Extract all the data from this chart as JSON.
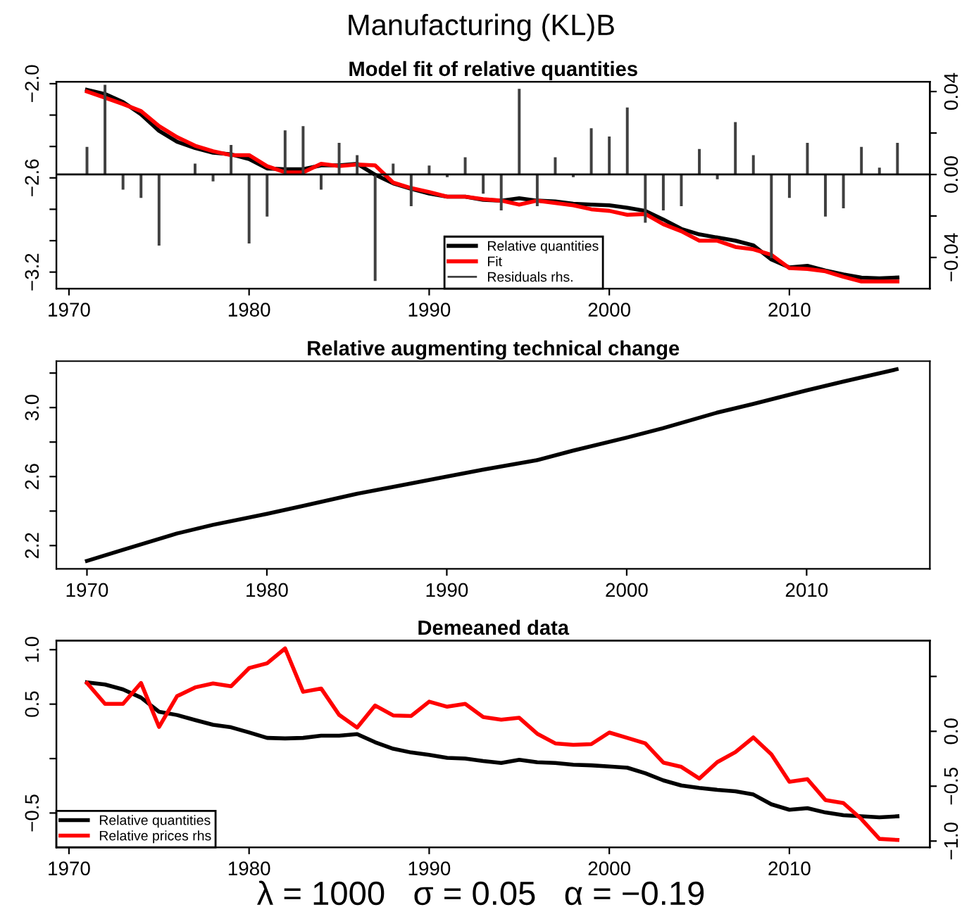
{
  "chart_data": [
    {
      "type": "line",
      "title": "Manufacturing (KL)B",
      "subtitle": "Model fit of relative quantities",
      "x": [
        1971,
        1972,
        1973,
        1974,
        1975,
        1976,
        1977,
        1978,
        1979,
        1980,
        1981,
        1982,
        1983,
        1984,
        1985,
        1986,
        1987,
        1988,
        1989,
        1990,
        1991,
        1992,
        1993,
        1994,
        1995,
        1996,
        1997,
        1998,
        1999,
        2000,
        2001,
        2002,
        2003,
        2004,
        2005,
        2006,
        2007,
        2008,
        2009,
        2010,
        2011,
        2012,
        2013,
        2014,
        2015,
        2016
      ],
      "series": [
        {
          "name": "Relative quantities",
          "color": "#000000",
          "values": [
            -2.039,
            -2.066,
            -2.117,
            -2.195,
            -2.3,
            -2.37,
            -2.41,
            -2.44,
            -2.45,
            -2.48,
            -2.54,
            -2.545,
            -2.545,
            -2.52,
            -2.52,
            -2.51,
            -2.58,
            -2.635,
            -2.67,
            -2.7,
            -2.72,
            -2.72,
            -2.74,
            -2.745,
            -2.73,
            -2.745,
            -2.75,
            -2.765,
            -2.77,
            -2.775,
            -2.79,
            -2.81,
            -2.865,
            -2.925,
            -2.96,
            -2.98,
            -3.0,
            -3.03,
            -3.12,
            -3.17,
            -3.16,
            -3.19,
            -3.215,
            -3.235,
            -3.24,
            -3.235
          ]
        },
        {
          "name": "Fit",
          "color": "#ff0000",
          "values": [
            -2.05,
            -2.09,
            -2.13,
            -2.175,
            -2.27,
            -2.34,
            -2.395,
            -2.43,
            -2.455,
            -2.455,
            -2.525,
            -2.565,
            -2.565,
            -2.51,
            -2.525,
            -2.515,
            -2.52,
            -2.63,
            -2.665,
            -2.69,
            -2.72,
            -2.72,
            -2.735,
            -2.745,
            -2.77,
            -2.745,
            -2.76,
            -2.775,
            -2.8,
            -2.81,
            -2.835,
            -2.83,
            -2.895,
            -2.94,
            -3.0,
            -3.0,
            -3.04,
            -3.055,
            -3.09,
            -3.175,
            -3.18,
            -3.195,
            -3.23,
            -3.26,
            -3.26,
            -3.26
          ]
        },
        {
          "name": "Residuals rhs.",
          "type": "bar",
          "axis": "y2",
          "color": "#404040",
          "values": [
            0.013,
            0.043,
            -0.007,
            -0.011,
            -0.034,
            0.0,
            0.005,
            -0.003,
            0.014,
            -0.033,
            -0.02,
            0.021,
            0.023,
            -0.007,
            0.015,
            0.009,
            -0.051,
            0.005,
            -0.015,
            0.004,
            -0.001,
            0.008,
            -0.009,
            -0.017,
            0.041,
            -0.015,
            0.008,
            -0.001,
            0.022,
            0.018,
            0.032,
            -0.023,
            -0.017,
            -0.015,
            0.012,
            -0.002,
            0.025,
            0.009,
            -0.04,
            -0.011,
            0.015,
            -0.02,
            -0.016,
            0.013,
            0.003,
            0.015
          ]
        }
      ],
      "xlim": [
        1969.3,
        2017.8
      ],
      "xticks": [
        1970,
        1980,
        1990,
        2000,
        2010
      ],
      "ylim": [
        -3.305,
        -1.988
      ],
      "yticks": [
        {
          "value": -2.0,
          "label": "−2.0"
        },
        {
          "value": -2.2,
          "label": null
        },
        {
          "value": -2.4,
          "label": null
        },
        {
          "value": -2.6,
          "label": "−2.6"
        },
        {
          "value": -2.8,
          "label": null
        },
        {
          "value": -3.0,
          "label": null
        },
        {
          "value": -3.2,
          "label": "−3.2"
        }
      ],
      "y2lim": [
        -0.055,
        0.0447
      ],
      "y2ticks": [
        {
          "value": -0.04,
          "label": "−0.04"
        },
        {
          "value": -0.02,
          "label": null
        },
        {
          "value": 0.0,
          "label": "0.00"
        },
        {
          "value": 0.02,
          "label": null
        },
        {
          "value": 0.04,
          "label": "0.04"
        }
      ],
      "ref_lines": [
        {
          "axis": "y2",
          "value": 0,
          "color": "#000000"
        }
      ],
      "legend": "bottom",
      "grid": false
    },
    {
      "type": "line",
      "subtitle": "Relative augmenting technical change",
      "x": [
        1970,
        1972,
        1975,
        1977,
        1980,
        1982,
        1985,
        1987,
        1990,
        1992,
        1995,
        1997,
        2000,
        2002,
        2005,
        2007,
        2010,
        2012,
        2015
      ],
      "series": [
        {
          "color": "#000000",
          "values": [
            2.111,
            2.175,
            2.27,
            2.32,
            2.384,
            2.43,
            2.5,
            2.54,
            2.6,
            2.64,
            2.695,
            2.75,
            2.826,
            2.88,
            2.97,
            3.02,
            3.1,
            3.15,
            3.222
          ]
        }
      ],
      "xlim": [
        1968.3,
        2016.85
      ],
      "xticks": [
        1970,
        1980,
        1990,
        2000,
        2010
      ],
      "ylim": [
        2.065,
        3.269
      ],
      "yticks": [
        2.2,
        {
          "value": 2.4,
          "label": null
        },
        2.6,
        {
          "value": 2.8,
          "label": null
        },
        {
          "value": 3.0,
          "label": "3.0"
        },
        {
          "value": 3.2,
          "label": null
        }
      ],
      "legend": false,
      "grid": false
    },
    {
      "type": "line",
      "subtitle": "Demeaned data",
      "x": [
        1971,
        1972,
        1973,
        1974,
        1975,
        1976,
        1977,
        1978,
        1979,
        1980,
        1981,
        1982,
        1983,
        1984,
        1985,
        1986,
        1987,
        1988,
        1989,
        1990,
        1991,
        1992,
        1993,
        1994,
        1995,
        1996,
        1997,
        1998,
        1999,
        2000,
        2001,
        2002,
        2003,
        2004,
        2005,
        2006,
        2007,
        2008,
        2009,
        2010,
        2011,
        2012,
        2013,
        2014,
        2015,
        2016
      ],
      "series": [
        {
          "name": "Relative quantities",
          "color": "#000000",
          "values": [
            0.7,
            0.68,
            0.635,
            0.56,
            0.43,
            0.4,
            0.354,
            0.31,
            0.287,
            0.24,
            0.19,
            0.185,
            0.19,
            0.21,
            0.21,
            0.225,
            0.15,
            0.09,
            0.056,
            0.034,
            0.006,
            0.0,
            -0.022,
            -0.04,
            -0.011,
            -0.034,
            -0.04,
            -0.056,
            -0.062,
            -0.073,
            -0.084,
            -0.135,
            -0.2,
            -0.247,
            -0.27,
            -0.287,
            -0.3,
            -0.33,
            -0.42,
            -0.47,
            -0.455,
            -0.495,
            -0.52,
            -0.53,
            -0.54,
            -0.53
          ]
        },
        {
          "name": "Relative prices rhs",
          "color": "#ff0000",
          "axis": "y2",
          "values": [
            0.44,
            0.25,
            0.25,
            0.44,
            0.04,
            0.32,
            0.4,
            0.436,
            0.41,
            0.576,
            0.62,
            0.755,
            0.36,
            0.39,
            0.15,
            0.034,
            0.235,
            0.145,
            0.14,
            0.27,
            0.224,
            0.25,
            0.13,
            0.106,
            0.123,
            -0.022,
            -0.11,
            -0.123,
            -0.117,
            -0.011,
            -0.06,
            -0.11,
            -0.285,
            -0.324,
            -0.43,
            -0.28,
            -0.19,
            -0.056,
            -0.21,
            -0.46,
            -0.436,
            -0.626,
            -0.654,
            -0.8,
            -0.98,
            -0.99
          ]
        }
      ],
      "xlim": [
        1969.3,
        2017.8
      ],
      "xticks": [
        1970,
        1980,
        1990,
        2000,
        2010
      ],
      "ylim": [
        -0.815,
        1.084
      ],
      "yticks": [
        {
          "value": -0.5,
          "label": "−0.5"
        },
        {
          "value": 0.0,
          "label": null
        },
        0.5,
        {
          "value": 1.0,
          "label": "1.0"
        }
      ],
      "y2lim": [
        -1.057,
        0.827
      ],
      "y2ticks": [
        {
          "value": -1.0,
          "label": "−1.0"
        },
        {
          "value": -0.5,
          "label": "−0.5"
        },
        {
          "value": 0.0,
          "label": "0.0"
        },
        {
          "value": 0.5,
          "label": null
        }
      ],
      "annotations": [
        "λ = 1000   σ = 0.05   α = −0.19"
      ],
      "legend": "bottom left",
      "grid": false
    }
  ]
}
